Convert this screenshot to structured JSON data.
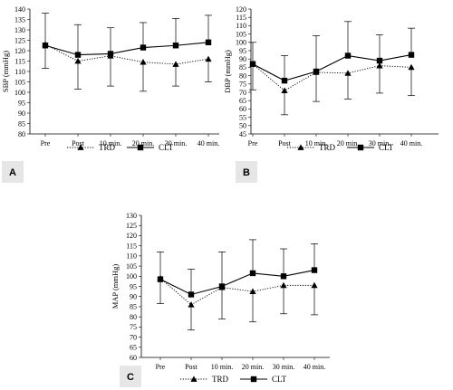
{
  "chart_data": [
    {
      "panel_label": "A",
      "type": "line",
      "categories": [
        "Pre",
        "Post",
        "10 min.",
        "20 min.",
        "30 min.",
        "40 min."
      ],
      "ylabel": "SBP (mmHg)",
      "ylim": [
        80,
        140
      ],
      "ytick_step": 5,
      "series": [
        {
          "name": "TRD",
          "marker": "triangle",
          "line_style": "dotted",
          "values": [
            123,
            115,
            117.5,
            114.5,
            113.5,
            116
          ],
          "error_low": [
            111.5,
            101.5,
            103,
            100.5,
            103,
            105
          ],
          "error_high": [
            null,
            null,
            null,
            null,
            null,
            null
          ]
        },
        {
          "name": "CLT",
          "marker": "square",
          "line_style": "solid",
          "values": [
            122.5,
            118,
            118.5,
            121.5,
            122.5,
            124
          ],
          "error_low": [
            null,
            null,
            null,
            null,
            null,
            null
          ],
          "error_high": [
            138,
            132.5,
            131,
            133.5,
            135.5,
            137
          ]
        }
      ]
    },
    {
      "panel_label": "B",
      "type": "line",
      "categories": [
        "Pre",
        "Post",
        "10 min.",
        "20 min.",
        "30 min.",
        "40 min."
      ],
      "ylabel": "DBP (mmHg)",
      "ylim": [
        45,
        120
      ],
      "ytick_step": 5,
      "series": [
        {
          "name": "TRD",
          "marker": "triangle",
          "line_style": "dotted",
          "values": [
            87,
            71,
            82,
            81.5,
            86,
            85
          ],
          "error_low": [
            71.5,
            56.5,
            64.5,
            66,
            69.5,
            68
          ],
          "error_high": [
            null,
            null,
            null,
            null,
            null,
            null
          ]
        },
        {
          "name": "CLT",
          "marker": "square",
          "line_style": "solid",
          "values": [
            87,
            77,
            82.5,
            92,
            89,
            92.5
          ],
          "error_low": [
            null,
            null,
            null,
            null,
            null,
            null
          ],
          "error_high": [
            100,
            92,
            104,
            112.5,
            104.5,
            108.5
          ]
        }
      ]
    },
    {
      "panel_label": "C",
      "type": "line",
      "categories": [
        "Pre",
        "Post",
        "10 min.",
        "20 min.",
        "30 min.",
        "40 min."
      ],
      "ylabel": "MAP (mmHg)",
      "ylim": [
        60,
        130
      ],
      "ytick_step": 5,
      "series": [
        {
          "name": "TRD",
          "marker": "triangle",
          "line_style": "dotted",
          "values": [
            99,
            86,
            94.5,
            92.5,
            95.5,
            95.5
          ],
          "error_low": [
            86.5,
            73.5,
            79,
            77.5,
            81.5,
            81
          ],
          "error_high": [
            null,
            null,
            null,
            null,
            null,
            null
          ]
        },
        {
          "name": "CLT",
          "marker": "square",
          "line_style": "solid",
          "values": [
            98.5,
            91,
            95,
            101.5,
            100,
            103
          ],
          "error_low": [
            null,
            null,
            null,
            null,
            null,
            null
          ],
          "error_high": [
            112,
            103.5,
            112,
            118,
            113.5,
            116
          ]
        }
      ]
    }
  ]
}
